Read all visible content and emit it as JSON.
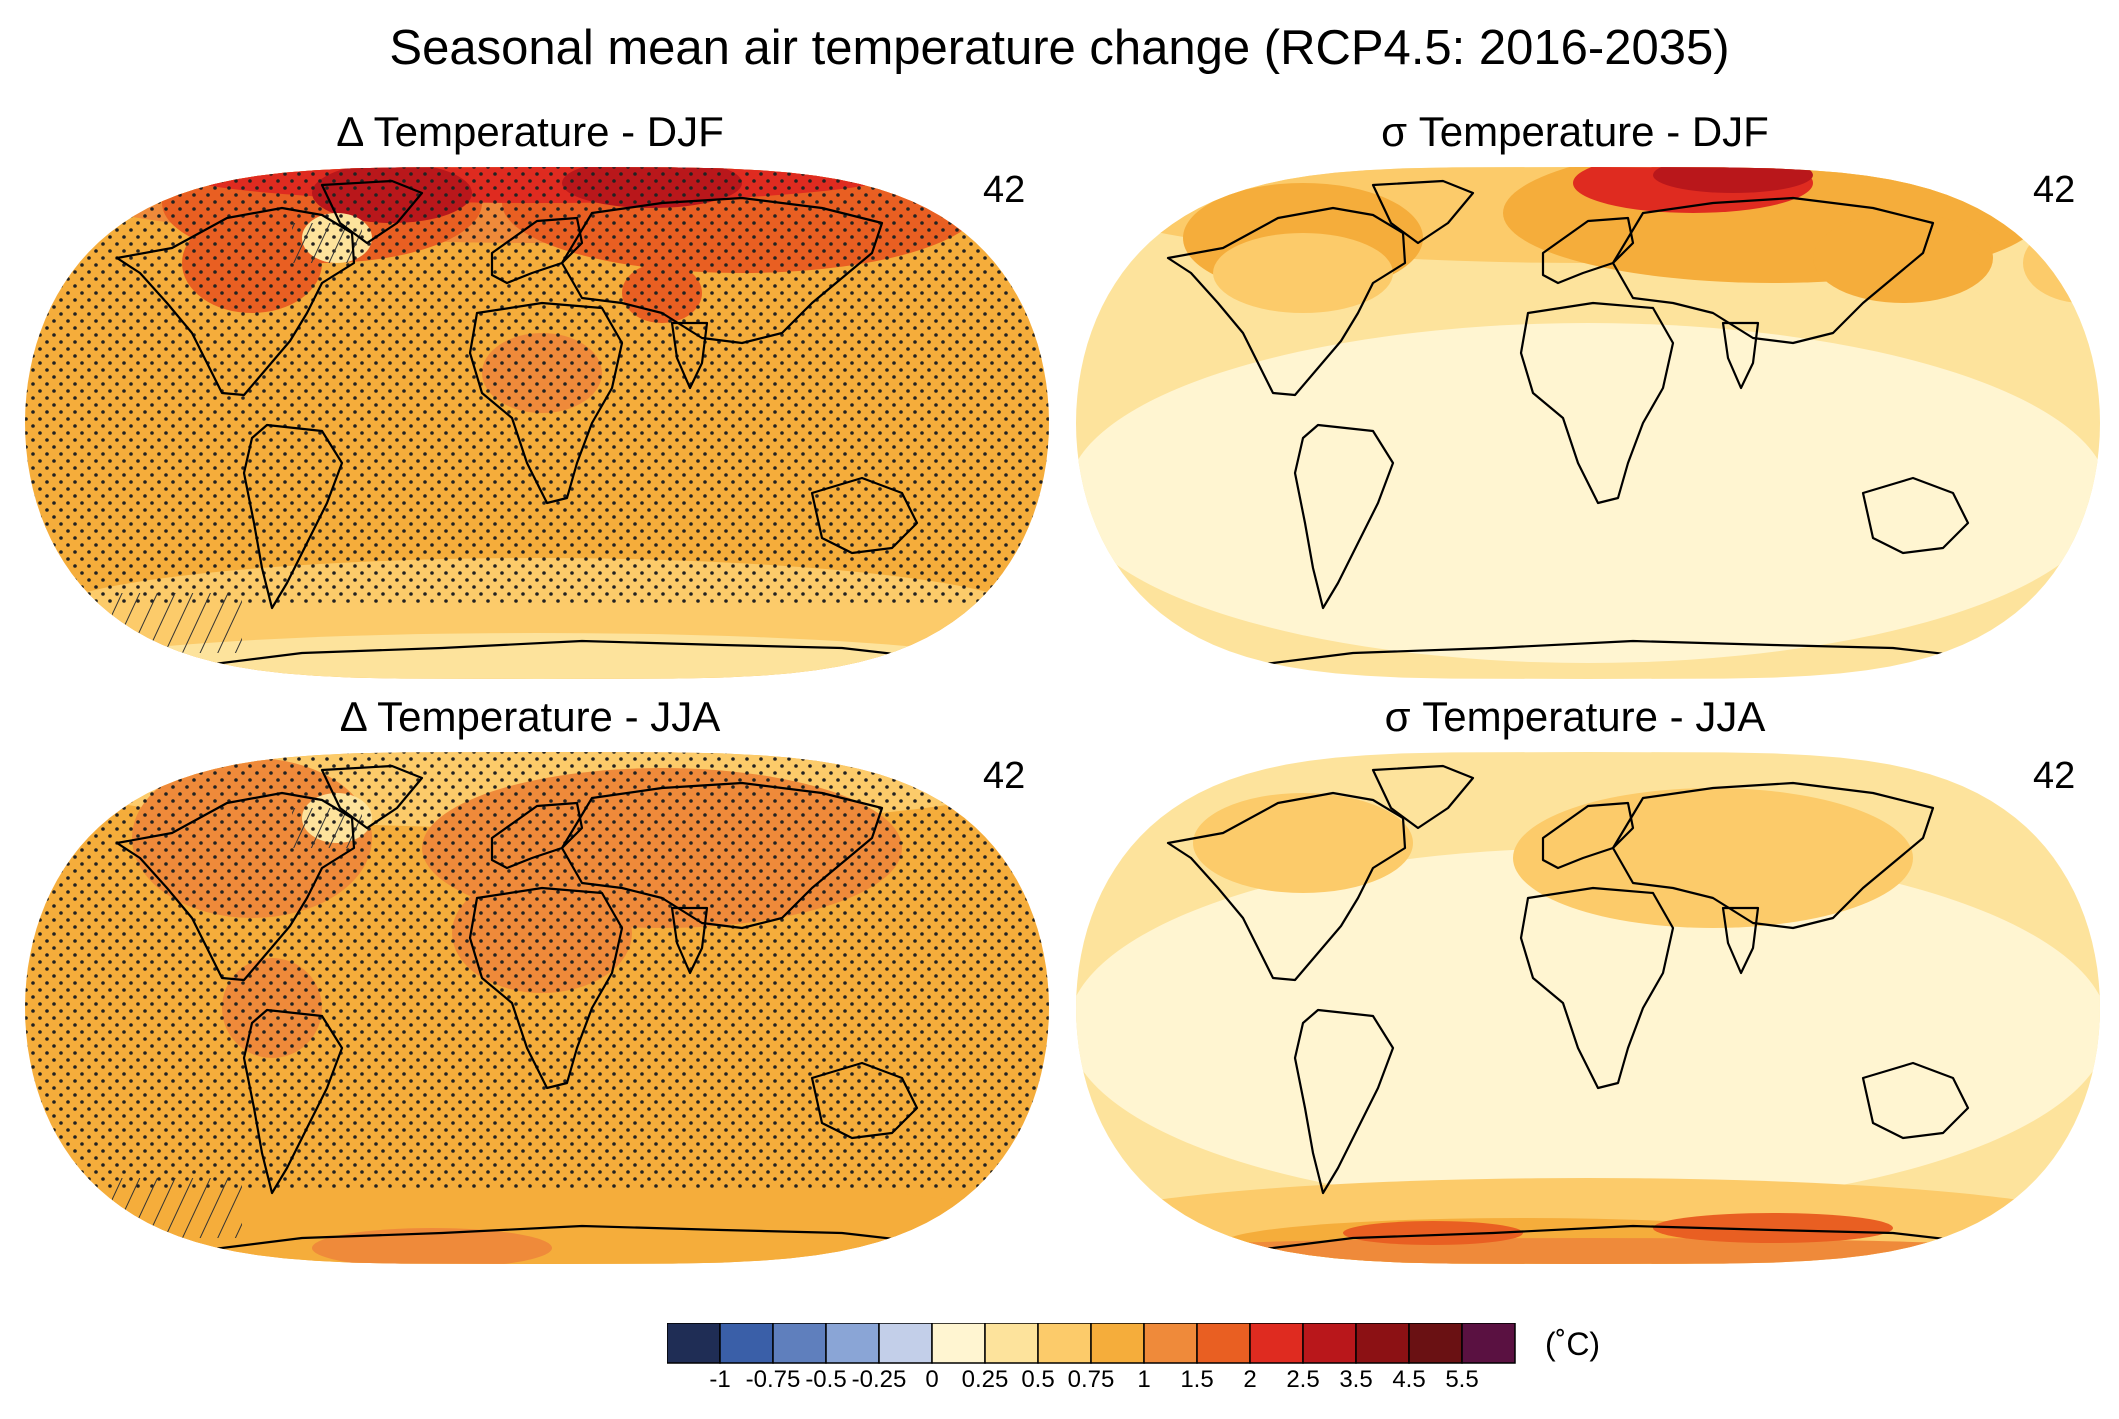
{
  "title": "Seasonal mean air temperature change (RCP4.5: 2016-2035)",
  "panels": [
    {
      "title": "Δ Temperature - DJF",
      "count": "42",
      "season": "DJF",
      "stat": "delta"
    },
    {
      "title": "σ Temperature - DJF",
      "count": "42",
      "season": "DJF",
      "stat": "sigma"
    },
    {
      "title": "Δ Temperature - JJA",
      "count": "42",
      "season": "JJA",
      "stat": "delta"
    },
    {
      "title": "σ Temperature - JJA",
      "count": "42",
      "season": "JJA",
      "stat": "sigma"
    }
  ],
  "colorbar": {
    "units": "(˚C)",
    "tick_labels": [
      "-1",
      "-0.75",
      "-0.5",
      "-0.25",
      "0",
      "0.25",
      "0.5",
      "0.75",
      "1",
      "1.5",
      "2",
      "2.5",
      "3.5",
      "4.5",
      "5.5"
    ],
    "colors": [
      "#1f2d55",
      "#3a5fa8",
      "#5f7fbd",
      "#8aa5d6",
      "#c3cfe9",
      "#fff5d1",
      "#fde39c",
      "#fccb6a",
      "#f5ad3b",
      "#ef8a3a",
      "#e95f22",
      "#df2b20",
      "#b9171b",
      "#8c1114",
      "#6a1113",
      "#5a1141"
    ]
  }
}
